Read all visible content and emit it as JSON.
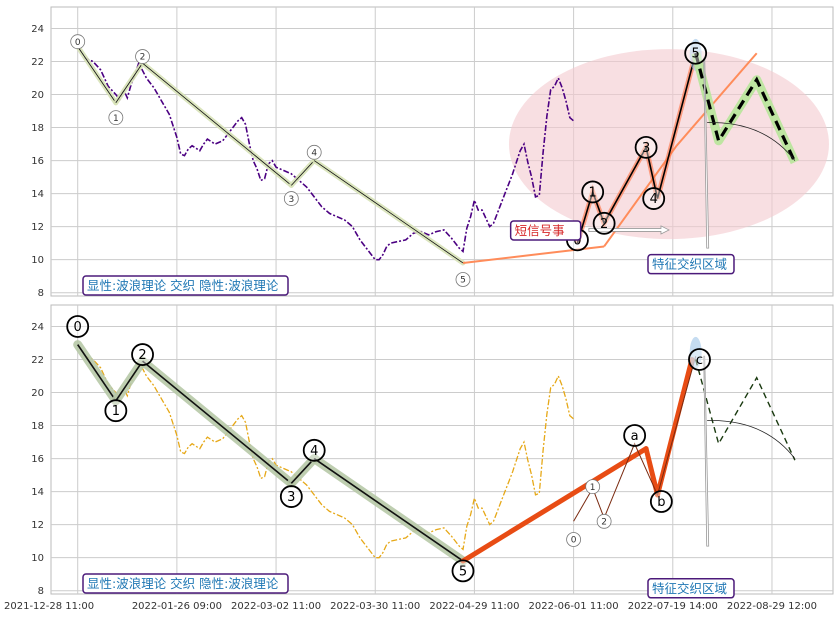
{
  "chart_data": [
    {
      "type": "line",
      "panel": "top",
      "ylim": [
        7.8,
        25.3
      ],
      "yticks": [
        "8",
        "10",
        "12",
        "14",
        "16",
        "18",
        "20",
        "22",
        "24"
      ],
      "grid": true,
      "price_color": "#4b0082",
      "price_series": [
        [
          0,
          22.9
        ],
        [
          2,
          22.2
        ],
        [
          4,
          22.0
        ],
        [
          6,
          21.5
        ],
        [
          8,
          20.5
        ],
        [
          10,
          20.0
        ],
        [
          11,
          19.7
        ],
        [
          12,
          20.3
        ],
        [
          13,
          19.8
        ],
        [
          14,
          20.6
        ],
        [
          15,
          21.2
        ],
        [
          16,
          21.9
        ],
        [
          18,
          21.0
        ],
        [
          20,
          20.4
        ],
        [
          22,
          19.6
        ],
        [
          24,
          18.8
        ],
        [
          26,
          17.4
        ],
        [
          27,
          16.4
        ],
        [
          28,
          16.3
        ],
        [
          29,
          16.7
        ],
        [
          30,
          16.9
        ],
        [
          32,
          16.6
        ],
        [
          33,
          17.0
        ],
        [
          34,
          17.3
        ],
        [
          36,
          17.0
        ],
        [
          38,
          17.2
        ],
        [
          40,
          17.8
        ],
        [
          42,
          18.4
        ],
        [
          43,
          18.6
        ],
        [
          44,
          18.2
        ],
        [
          45,
          17.0
        ],
        [
          46,
          16.0
        ],
        [
          47,
          15.5
        ],
        [
          48,
          14.8
        ],
        [
          49,
          14.9
        ],
        [
          50,
          15.8
        ],
        [
          51,
          16.0
        ],
        [
          52,
          15.6
        ],
        [
          54,
          15.4
        ],
        [
          56,
          15.2
        ],
        [
          58,
          14.8
        ],
        [
          60,
          14.4
        ],
        [
          62,
          13.8
        ],
        [
          64,
          13.2
        ],
        [
          66,
          12.8
        ],
        [
          68,
          12.6
        ],
        [
          70,
          12.4
        ],
        [
          72,
          12.0
        ],
        [
          74,
          11.2
        ],
        [
          76,
          10.6
        ],
        [
          78,
          10.0
        ],
        [
          79,
          10.0
        ],
        [
          80,
          10.3
        ],
        [
          81,
          10.8
        ],
        [
          82,
          11.0
        ],
        [
          84,
          11.1
        ],
        [
          86,
          11.2
        ],
        [
          88,
          11.6
        ],
        [
          90,
          11.7
        ],
        [
          92,
          11.5
        ],
        [
          94,
          11.7
        ],
        [
          96,
          11.8
        ],
        [
          98,
          11.3
        ],
        [
          100,
          10.7
        ],
        [
          101,
          10.5
        ],
        [
          102,
          11.9
        ],
        [
          103,
          12.6
        ],
        [
          104,
          13.6
        ],
        [
          105,
          13.0
        ],
        [
          106,
          13.0
        ],
        [
          108,
          12.0
        ],
        [
          109,
          12.2
        ],
        [
          110,
          12.8
        ],
        [
          112,
          14.0
        ],
        [
          113,
          14.6
        ],
        [
          114,
          15.2
        ],
        [
          116,
          16.6
        ],
        [
          117,
          17.0
        ],
        [
          118,
          15.9
        ],
        [
          119,
          15.0
        ],
        [
          120,
          13.8
        ],
        [
          121,
          13.9
        ],
        [
          122,
          16.5
        ],
        [
          123,
          18.7
        ],
        [
          124,
          20.3
        ],
        [
          125,
          20.5
        ],
        [
          126,
          21.0
        ],
        [
          127,
          20.4
        ],
        [
          128,
          19.6
        ],
        [
          129,
          18.6
        ],
        [
          130,
          18.4
        ]
      ],
      "wave_lines": [
        {
          "from": [
            0,
            22.9
          ],
          "to": [
            10,
            19.5
          ]
        },
        {
          "from": [
            10,
            19.5
          ],
          "to": [
            17,
            21.9
          ]
        },
        {
          "from": [
            17,
            21.9
          ],
          "to": [
            56,
            14.5
          ]
        },
        {
          "from": [
            56,
            14.5
          ],
          "to": [
            62,
            16.0
          ]
        },
        {
          "from": [
            62,
            16.0
          ],
          "to": [
            101,
            9.8
          ]
        },
        {
          "from": [
            101,
            9.8
          ],
          "to": [
            138,
            10.8
          ]
        },
        {
          "from": [
            138,
            10.8
          ],
          "to": [
            157,
            16.9
          ]
        },
        {
          "from": [
            157,
            16.9
          ],
          "to": [
            178,
            22.5
          ]
        }
      ],
      "small_labels": [
        {
          "text": "0",
          "x": 0,
          "y": 23.2
        },
        {
          "text": "1",
          "x": 10,
          "y": 18.6
        },
        {
          "text": "2",
          "x": 17,
          "y": 22.3
        },
        {
          "text": "3",
          "x": 56,
          "y": 13.7
        },
        {
          "text": "4",
          "x": 62,
          "y": 16.5
        },
        {
          "text": "5",
          "x": 101,
          "y": 8.8
        }
      ],
      "big_labels": [
        {
          "text": "1",
          "x": 135,
          "y": 14.1
        },
        {
          "text": "2",
          "x": 138,
          "y": 12.2
        },
        {
          "text": "3",
          "x": 149,
          "y": 16.8
        },
        {
          "text": "4",
          "x": 151,
          "y": 13.7
        },
        {
          "text": "5",
          "x": 162,
          "y": 22.5
        },
        {
          "text": "0",
          "x": 131,
          "y": 11.2
        }
      ],
      "projection": [
        [
          162,
          22.5
        ],
        [
          168,
          17.2
        ],
        [
          178,
          20.9
        ],
        [
          188,
          15.9
        ]
      ],
      "info_text": "显性:波浪理论 交织 隐性:波浪理论",
      "zone_text": "特征交织区域",
      "signal_text": "短信号事"
    },
    {
      "type": "line",
      "panel": "bottom",
      "ylim": [
        7.8,
        25.3
      ],
      "yticks": [
        "8",
        "10",
        "12",
        "14",
        "16",
        "18",
        "20",
        "22",
        "24"
      ],
      "grid": true,
      "price_color": "#e6a817",
      "wave_lines": [
        {
          "from": [
            0,
            22.9
          ],
          "to": [
            10,
            19.5
          ]
        },
        {
          "from": [
            10,
            19.5
          ],
          "to": [
            17,
            21.9
          ]
        },
        {
          "from": [
            17,
            21.9
          ],
          "to": [
            56,
            14.5
          ]
        },
        {
          "from": [
            56,
            14.5
          ],
          "to": [
            62,
            16.0
          ]
        },
        {
          "from": [
            62,
            16.0
          ],
          "to": [
            101,
            9.8
          ]
        }
      ],
      "abc_lines": [
        {
          "from": [
            101,
            9.8
          ],
          "to": [
            149,
            16.6
          ]
        },
        {
          "from": [
            149,
            16.6
          ],
          "to": [
            152,
            13.8
          ]
        },
        {
          "from": [
            152,
            13.8
          ],
          "to": [
            161,
            22.0
          ]
        }
      ],
      "big_labels": [
        {
          "text": "0",
          "x": 0,
          "y": 24.0
        },
        {
          "text": "1",
          "x": 10,
          "y": 18.9
        },
        {
          "text": "2",
          "x": 17,
          "y": 22.3
        },
        {
          "text": "3",
          "x": 56,
          "y": 13.7
        },
        {
          "text": "4",
          "x": 62,
          "y": 16.5
        },
        {
          "text": "5",
          "x": 101,
          "y": 9.2
        },
        {
          "text": "a",
          "x": 146,
          "y": 17.4
        },
        {
          "text": "b",
          "x": 153,
          "y": 13.4
        },
        {
          "text": "c",
          "x": 163,
          "y": 22.0
        }
      ],
      "small_labels": [
        {
          "text": "0",
          "x": 130,
          "y": 11.1
        },
        {
          "text": "1",
          "x": 135,
          "y": 14.3
        },
        {
          "text": "2",
          "x": 138,
          "y": 12.2
        }
      ],
      "projection": [
        [
          162,
          22.0
        ],
        [
          168,
          16.9
        ],
        [
          178,
          20.9
        ],
        [
          188,
          15.9
        ]
      ],
      "info_text": "显性:波浪理论 交织 隐性:波浪理论",
      "zone_text": "特征交织区域"
    }
  ],
  "x_axis": {
    "labels": [
      "2021-12-28 11:00",
      "2022-01-26 09:00",
      "2022-03-02 11:00",
      "2022-03-30 11:00",
      "2022-04-29 11:00",
      "2022-06-01 11:00",
      "2022-07-19 14:00",
      "2022-08-29 12:00"
    ],
    "positions": [
      0,
      26,
      52,
      78,
      104,
      130,
      156,
      182
    ],
    "range": [
      -7,
      198
    ]
  },
  "colors": {
    "grid": "#cccccc",
    "panel_bg": "#ffffff",
    "top_price": "#4b0082",
    "bottom_price": "#e6a817",
    "wave_line": "#111111",
    "wave_halo": "#d8e3b8",
    "bottom_halo": "#b8c9a8",
    "orange_wave": "#ff8c5a",
    "orange_bold": "#e84c14",
    "ellipse": "#f4c9cf",
    "projection_halo": "#b7e69a",
    "label_box": "#4b1a7a"
  }
}
